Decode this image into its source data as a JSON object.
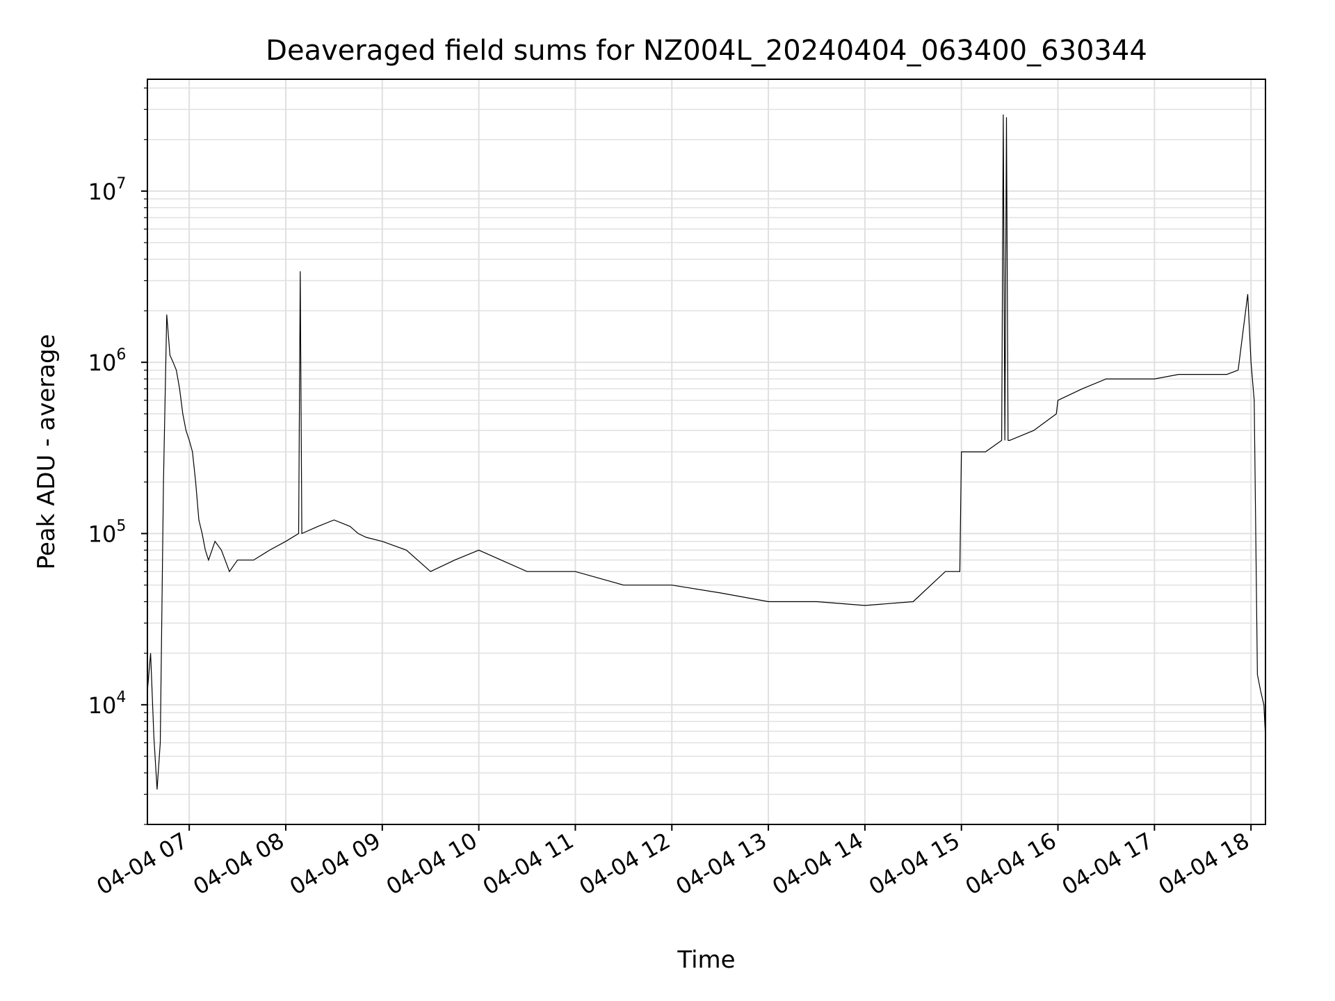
{
  "chart_data": {
    "type": "line",
    "title": "Deaveraged field sums for NZ004L_20240404_063400_630344",
    "xlabel": "Time",
    "ylabel": "Peak ADU - average",
    "y_scale": "log",
    "ylim": [
      2000,
      45000000
    ],
    "xlim": [
      "2024-04-04 06:34",
      "2024-04-04 18:09"
    ],
    "grid": true,
    "line_color": "#000000",
    "grid_color": "#e0e0e0",
    "x_ticks": [
      {
        "label": "04-04 07",
        "hour": 7
      },
      {
        "label": "04-04 08",
        "hour": 8
      },
      {
        "label": "04-04 09",
        "hour": 9
      },
      {
        "label": "04-04 10",
        "hour": 10
      },
      {
        "label": "04-04 11",
        "hour": 11
      },
      {
        "label": "04-04 12",
        "hour": 12
      },
      {
        "label": "04-04 13",
        "hour": 13
      },
      {
        "label": "04-04 14",
        "hour": 14
      },
      {
        "label": "04-04 15",
        "hour": 15
      },
      {
        "label": "04-04 16",
        "hour": 16
      },
      {
        "label": "04-04 17",
        "hour": 17
      },
      {
        "label": "04-04 18",
        "hour": 18
      }
    ],
    "y_ticks": [
      {
        "base": "10",
        "exp": "4",
        "value": 10000
      },
      {
        "base": "10",
        "exp": "5",
        "value": 100000
      },
      {
        "base": "10",
        "exp": "6",
        "value": 1000000
      },
      {
        "base": "10",
        "exp": "7",
        "value": 10000000
      }
    ],
    "series": [
      {
        "x": [
          "2024-04-04 06:34",
          "2024-04-04 06:36",
          "2024-04-04 06:38",
          "2024-04-04 06:40",
          "2024-04-04 06:42",
          "2024-04-04 06:44",
          "2024-04-04 06:46",
          "2024-04-04 06:48",
          "2024-04-04 06:50",
          "2024-04-04 06:52",
          "2024-04-04 06:54",
          "2024-04-04 06:56",
          "2024-04-04 06:58",
          "2024-04-04 07:00",
          "2024-04-04 07:02",
          "2024-04-04 07:04",
          "2024-04-04 07:06",
          "2024-04-04 07:08",
          "2024-04-04 07:10",
          "2024-04-04 07:12",
          "2024-04-04 07:16",
          "2024-04-04 07:20",
          "2024-04-04 07:25",
          "2024-04-04 07:30",
          "2024-04-04 07:40",
          "2024-04-04 07:50",
          "2024-04-04 08:00",
          "2024-04-04 08:08",
          "2024-04-04 08:09",
          "2024-04-04 08:10",
          "2024-04-04 08:20",
          "2024-04-04 08:30",
          "2024-04-04 08:40",
          "2024-04-04 08:45",
          "2024-04-04 08:50",
          "2024-04-04 09:00",
          "2024-04-04 09:15",
          "2024-04-04 09:30",
          "2024-04-04 09:45",
          "2024-04-04 10:00",
          "2024-04-04 10:30",
          "2024-04-04 11:00",
          "2024-04-04 11:30",
          "2024-04-04 12:00",
          "2024-04-04 12:30",
          "2024-04-04 13:00",
          "2024-04-04 13:30",
          "2024-04-04 14:00",
          "2024-04-04 14:30",
          "2024-04-04 14:50",
          "2024-04-04 14:59",
          "2024-04-04 15:00",
          "2024-04-04 15:15",
          "2024-04-04 15:25",
          "2024-04-04 15:26",
          "2024-04-04 15:27",
          "2024-04-04 15:28",
          "2024-04-04 15:29",
          "2024-04-04 15:30",
          "2024-04-04 15:45",
          "2024-04-04 15:59",
          "2024-04-04 16:00",
          "2024-04-04 16:15",
          "2024-04-04 16:30",
          "2024-04-04 16:45",
          "2024-04-04 17:00",
          "2024-04-04 17:15",
          "2024-04-04 17:30",
          "2024-04-04 17:45",
          "2024-04-04 17:52",
          "2024-04-04 17:55",
          "2024-04-04 17:58",
          "2024-04-04 18:00",
          "2024-04-04 18:02",
          "2024-04-04 18:04",
          "2024-04-04 18:06",
          "2024-04-04 18:08",
          "2024-04-04 18:09"
        ],
        "y": [
          12000,
          20000,
          6500,
          3200,
          6000,
          200000,
          1900000,
          1100000,
          1000000,
          900000,
          700000,
          500000,
          400000,
          350000,
          300000,
          200000,
          120000,
          100000,
          80000,
          70000,
          90000,
          80000,
          60000,
          70000,
          70000,
          80000,
          90000,
          100000,
          3400000,
          100000,
          110000,
          120000,
          110000,
          100000,
          95000,
          90000,
          80000,
          60000,
          70000,
          80000,
          60000,
          60000,
          50000,
          50000,
          45000,
          40000,
          40000,
          38000,
          40000,
          60000,
          60000,
          300000,
          300000,
          350000,
          28000000,
          350000,
          27000000,
          350000,
          350000,
          400000,
          500000,
          600000,
          700000,
          800000,
          800000,
          800000,
          850000,
          850000,
          850000,
          900000,
          1500000,
          2500000,
          1000000,
          600000,
          15000,
          12000,
          10000,
          6500
        ]
      }
    ]
  }
}
